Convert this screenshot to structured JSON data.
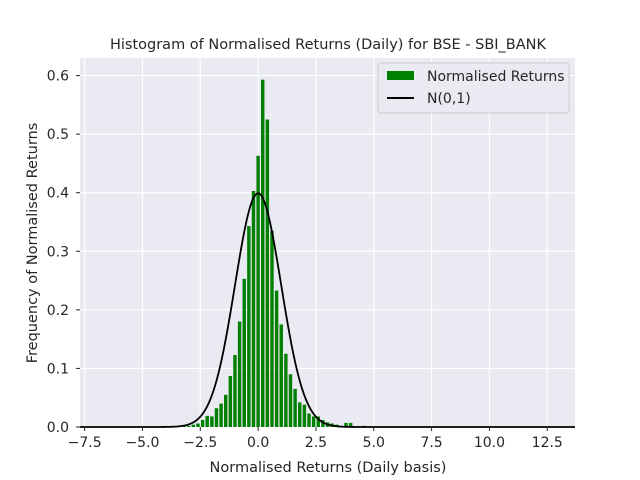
{
  "chart_data": {
    "type": "bar",
    "title": "Histogram of Normalised Returns (Daily) for BSE - SBI_BANK",
    "xlabel": "Normalised Returns (Daily basis)",
    "ylabel": "Frequency of Normalised Returns",
    "xlim": [
      -7.7,
      13.7
    ],
    "ylim": [
      0,
      0.63
    ],
    "xticks": [
      -7.5,
      -5.0,
      -2.5,
      0.0,
      2.5,
      5.0,
      7.5,
      10.0,
      12.5
    ],
    "xtick_labels": [
      "−7.5",
      "−5.0",
      "−2.5",
      "0.0",
      "2.5",
      "5.0",
      "7.5",
      "10.0",
      "12.5"
    ],
    "yticks": [
      0.0,
      0.1,
      0.2,
      0.3,
      0.4,
      0.5,
      0.6
    ],
    "ytick_labels": [
      "0.0",
      "0.1",
      "0.2",
      "0.3",
      "0.4",
      "0.5",
      "0.6"
    ],
    "grid": true,
    "legend_position": "top-right",
    "colors": {
      "background": "#eaeaf2",
      "bars": "#008000",
      "normal_curve": "#000000",
      "grid": "#ffffff"
    },
    "series": [
      {
        "name": "Normalised Returns",
        "kind": "histogram",
        "bin_width": 0.2,
        "bins": [
          {
            "x": -7.2,
            "y": 0.001
          },
          {
            "x": -3.6,
            "y": 0.001
          },
          {
            "x": -3.2,
            "y": 0.002
          },
          {
            "x": -3.0,
            "y": 0.002
          },
          {
            "x": -2.8,
            "y": 0.004
          },
          {
            "x": -2.6,
            "y": 0.006
          },
          {
            "x": -2.4,
            "y": 0.012
          },
          {
            "x": -2.2,
            "y": 0.019
          },
          {
            "x": -2.0,
            "y": 0.018
          },
          {
            "x": -1.8,
            "y": 0.032
          },
          {
            "x": -1.6,
            "y": 0.04
          },
          {
            "x": -1.4,
            "y": 0.055
          },
          {
            "x": -1.2,
            "y": 0.087
          },
          {
            "x": -1.0,
            "y": 0.123
          },
          {
            "x": -0.8,
            "y": 0.18
          },
          {
            "x": -0.6,
            "y": 0.253
          },
          {
            "x": -0.4,
            "y": 0.343
          },
          {
            "x": -0.2,
            "y": 0.403
          },
          {
            "x": 0.0,
            "y": 0.463
          },
          {
            "x": 0.2,
            "y": 0.593
          },
          {
            "x": 0.4,
            "y": 0.525
          },
          {
            "x": 0.6,
            "y": 0.335
          },
          {
            "x": 0.8,
            "y": 0.233
          },
          {
            "x": 1.0,
            "y": 0.175
          },
          {
            "x": 1.2,
            "y": 0.125
          },
          {
            "x": 1.4,
            "y": 0.09
          },
          {
            "x": 1.6,
            "y": 0.065
          },
          {
            "x": 1.8,
            "y": 0.042
          },
          {
            "x": 2.0,
            "y": 0.038
          },
          {
            "x": 2.2,
            "y": 0.023
          },
          {
            "x": 2.4,
            "y": 0.018
          },
          {
            "x": 2.6,
            "y": 0.018
          },
          {
            "x": 2.8,
            "y": 0.012
          },
          {
            "x": 3.0,
            "y": 0.008
          },
          {
            "x": 3.2,
            "y": 0.006
          },
          {
            "x": 3.4,
            "y": 0.004
          },
          {
            "x": 3.6,
            "y": 0.002
          },
          {
            "x": 3.8,
            "y": 0.007
          },
          {
            "x": 4.0,
            "y": 0.007
          },
          {
            "x": 4.6,
            "y": 0.002
          },
          {
            "x": 5.4,
            "y": 0.001
          },
          {
            "x": 13.0,
            "y": 0.001
          }
        ]
      },
      {
        "name": "N(0,1)",
        "kind": "line",
        "function": "standard_normal_pdf",
        "x_range": [
          -7.7,
          13.7
        ]
      }
    ]
  }
}
